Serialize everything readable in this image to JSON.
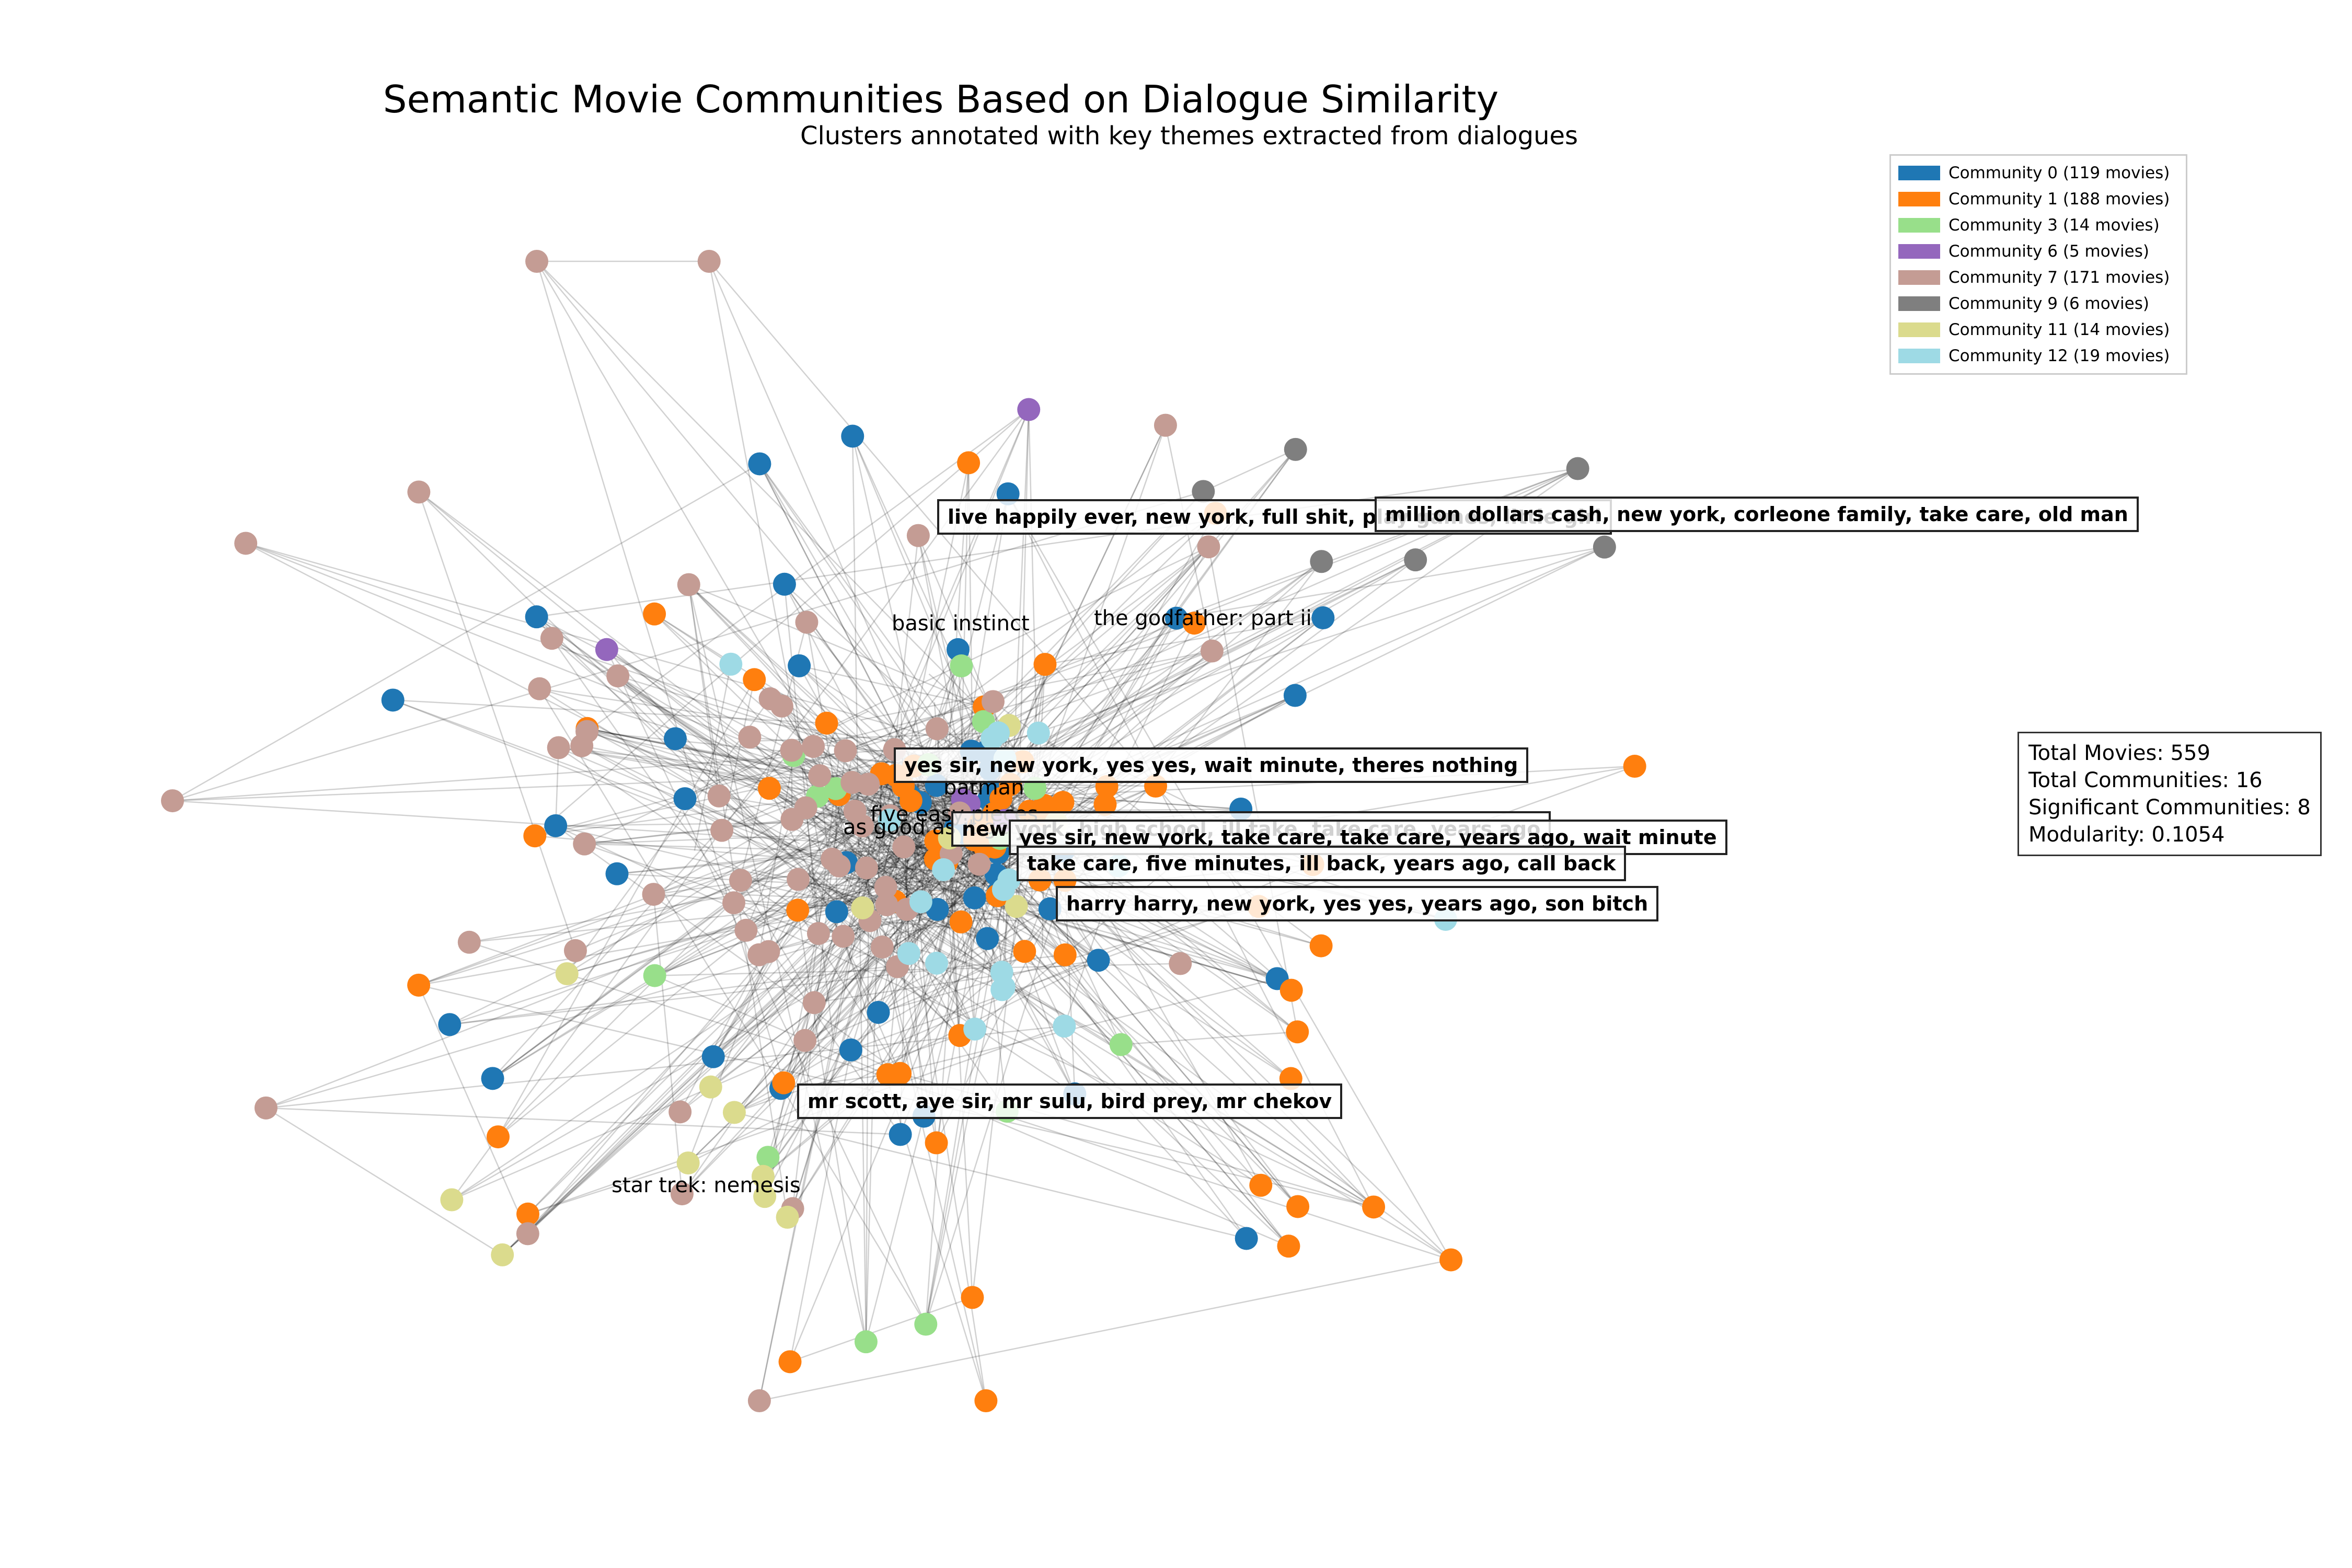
{
  "title": "Semantic Movie Communities Based on Dialogue Similarity",
  "subtitle": "Clusters annotated with key themes extracted from dialogues",
  "legend": [
    {
      "label": "Community 0 (119 movies)",
      "color": "#1f77b4"
    },
    {
      "label": "Community 1 (188 movies)",
      "color": "#ff7f0e"
    },
    {
      "label": "Community 3 (14 movies)",
      "color": "#98df8a"
    },
    {
      "label": "Community 6 (5 movies)",
      "color": "#9467bd"
    },
    {
      "label": "Community 7 (171 movies)",
      "color": "#c49c94"
    },
    {
      "label": "Community 9 (6 movies)",
      "color": "#7f7f7f"
    },
    {
      "label": "Community 11 (14 movies)",
      "color": "#dbdb8d"
    },
    {
      "label": "Community 12 (19 movies)",
      "color": "#9edae5"
    }
  ],
  "stats": {
    "total_movies": "Total Movies: 559",
    "total_communities": "Total Communities: 16",
    "significant": "Significant Communities: 8",
    "modularity": "Modularity: 0.1054"
  },
  "themes": {
    "t1": "live happily ever, new york, full shit, play games, little girl",
    "t2": "million dollars cash, new york, corleone family, take care, old man",
    "t3": "yes sir, new york, yes yes, wait minute, theres nothing",
    "t4": "new york, high school, ill take, take care, years ago",
    "t5": "yes sir, new york, take care, take care, years ago, wait minute",
    "t6": "take care, five minutes, ill back, years ago, call back",
    "t7": "harry harry, new york, yes yes, years ago, son bitch",
    "t8": "mr scott, aye sir, mr sulu, bird prey, mr chekov"
  },
  "movie_labels": {
    "basic_instinct": "basic instinct",
    "godfather": "the godfather: part ii",
    "batman": "batman",
    "five_easy": "five easy pieces",
    "as_good": "as good as it gets",
    "star_trek": "star trek: nemesis"
  }
}
